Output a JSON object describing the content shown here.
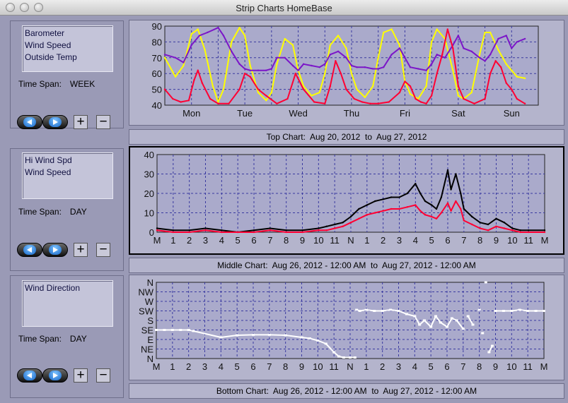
{
  "window": {
    "title": "Strip Charts    HomeBase"
  },
  "panels": [
    {
      "legend": [
        "Barometer",
        "Wind Speed",
        "Outside Temp"
      ],
      "time_span_label": "Time Span:",
      "time_span_value": "WEEK",
      "caption": "Top Chart:  Aug 20, 2012  to  Aug 27, 2012"
    },
    {
      "legend": [
        "Hi Wind Spd",
        "Wind Speed"
      ],
      "time_span_label": "Time Span:",
      "time_span_value": "DAY",
      "caption": "Middle Chart:  Aug 26, 2012 - 12:00 AM  to  Aug 27, 2012 - 12:00 AM"
    },
    {
      "legend": [
        "Wind Direction"
      ],
      "time_span_label": "Time Span:",
      "time_span_value": "DAY",
      "caption": "Bottom Chart:  Aug 26, 2012 - 12:00 AM  to  Aug 27, 2012 - 12:00 AM"
    }
  ],
  "buttons": {
    "prev_icon": "left-arrow-icon",
    "next_icon": "right-arrow-icon",
    "zoom_in": "+",
    "zoom_out": "−"
  },
  "colors": {
    "plot_bg": "#aaaacb",
    "grid": "#3a3aa0",
    "barometer": "#7b16c8",
    "wind_speed_red": "#ff0033",
    "outside_temp": "#ffff00",
    "hi_wind": "#000000",
    "wind_dir": "#ffffff"
  },
  "chart_data": [
    {
      "type": "line",
      "name": "top",
      "categories": [
        "Mon",
        "Tue",
        "Wed",
        "Thu",
        "Fri",
        "Sat",
        "Sun"
      ],
      "y_ticks": [
        40,
        50,
        60,
        70,
        80,
        90
      ],
      "ylim": [
        40,
        90
      ],
      "grid": true,
      "series": [
        {
          "name": "Outside Temp",
          "color": "#ffff00",
          "x": [
            0,
            0.2,
            0.35,
            0.5,
            0.62,
            0.75,
            0.9,
            1.0,
            1.1,
            1.25,
            1.4,
            1.5,
            1.6,
            1.75,
            1.9,
            2.0,
            2.1,
            2.25,
            2.4,
            2.5,
            2.6,
            2.75,
            2.9,
            3.0,
            3.1,
            3.25,
            3.4,
            3.5,
            3.6,
            3.75,
            3.9,
            4.0,
            4.1,
            4.25,
            4.4,
            4.5,
            4.6,
            4.75,
            4.9,
            5.0,
            5.1,
            5.25,
            5.4,
            5.5,
            5.6,
            5.75,
            5.9,
            6.0,
            6.1,
            6.25,
            6.4,
            6.5,
            6.6,
            6.75
          ],
          "values": [
            70,
            58,
            65,
            85,
            88,
            75,
            52,
            42,
            50,
            80,
            89,
            84,
            65,
            48,
            43,
            48,
            66,
            82,
            78,
            62,
            52,
            46,
            48,
            60,
            78,
            84,
            76,
            60,
            50,
            45,
            52,
            70,
            86,
            88,
            78,
            55,
            47,
            44,
            52,
            80,
            88,
            82,
            62,
            46,
            44,
            48,
            72,
            86,
            86,
            75,
            66,
            62,
            58,
            57
          ]
        },
        {
          "name": "Barometer",
          "color": "#7b16c8",
          "x": [
            0,
            0.2,
            0.35,
            0.5,
            0.65,
            0.8,
            1.0,
            1.1,
            1.25,
            1.4,
            1.5,
            1.6,
            1.75,
            1.9,
            2.0,
            2.1,
            2.25,
            2.4,
            2.5,
            2.6,
            2.75,
            2.9,
            3.0,
            3.1,
            3.25,
            3.4,
            3.5,
            3.6,
            3.75,
            3.9,
            4.0,
            4.1,
            4.25,
            4.4,
            4.5,
            4.6,
            4.75,
            4.9,
            5.0,
            5.1,
            5.25,
            5.4,
            5.5,
            5.6,
            5.75,
            5.9,
            6.0,
            6.1,
            6.25,
            6.4,
            6.5,
            6.6,
            6.75
          ],
          "values": [
            72,
            70,
            67,
            78,
            84,
            86,
            89,
            84,
            74,
            66,
            63,
            62,
            62,
            62,
            63,
            70,
            70,
            65,
            62,
            66,
            65,
            64,
            66,
            72,
            74,
            70,
            65,
            64,
            64,
            63,
            63,
            64,
            72,
            76,
            70,
            64,
            63,
            62,
            66,
            72,
            70,
            78,
            84,
            76,
            74,
            70,
            68,
            72,
            82,
            84,
            76,
            80,
            82
          ]
        },
        {
          "name": "Wind Speed",
          "color": "#ff0033",
          "x": [
            0,
            0.15,
            0.3,
            0.45,
            0.55,
            0.62,
            0.7,
            0.85,
            1.0,
            1.2,
            1.4,
            1.5,
            1.6,
            1.75,
            1.9,
            2.1,
            2.3,
            2.45,
            2.6,
            2.8,
            3.0,
            3.1,
            3.2,
            3.3,
            3.4,
            3.55,
            3.7,
            3.85,
            4.0,
            4.2,
            4.4,
            4.5,
            4.6,
            4.7,
            4.8,
            4.9,
            5.0,
            5.1,
            5.2,
            5.3,
            5.4,
            5.5,
            5.6,
            5.8,
            6.0,
            6.1,
            6.2,
            6.3,
            6.4,
            6.5,
            6.6,
            6.75
          ],
          "values": [
            50,
            44,
            42,
            43,
            56,
            62,
            54,
            44,
            41,
            41,
            50,
            60,
            58,
            50,
            46,
            41,
            44,
            60,
            50,
            42,
            41,
            52,
            68,
            60,
            50,
            44,
            42,
            41,
            41,
            42,
            48,
            55,
            52,
            44,
            42,
            41,
            46,
            60,
            72,
            88,
            76,
            52,
            44,
            41,
            44,
            60,
            68,
            64,
            54,
            50,
            44,
            41
          ]
        }
      ]
    },
    {
      "type": "line",
      "name": "middle",
      "categories": [
        "M",
        "1",
        "2",
        "3",
        "4",
        "5",
        "6",
        "7",
        "8",
        "9",
        "10",
        "11",
        "N",
        "1",
        "2",
        "3",
        "4",
        "5",
        "6",
        "7",
        "8",
        "9",
        "10",
        "11",
        "M"
      ],
      "y_ticks": [
        0,
        10,
        20,
        30,
        40
      ],
      "ylim": [
        0,
        40
      ],
      "grid": true,
      "series": [
        {
          "name": "Hi Wind Spd",
          "color": "#000000",
          "x": [
            0,
            1,
            2,
            3,
            4,
            5,
            6,
            7,
            8,
            9,
            10,
            10.5,
            11,
            11.5,
            12,
            12.5,
            13,
            13.5,
            14,
            14.5,
            15,
            15.5,
            16,
            16.3,
            16.6,
            17,
            17.3,
            17.6,
            18,
            18.2,
            18.5,
            18.8,
            19,
            19.5,
            20,
            20.5,
            21,
            21.5,
            22,
            22.5,
            23,
            24
          ],
          "values": [
            2,
            1,
            1,
            2,
            1,
            0,
            1,
            2,
            1,
            1,
            2,
            3,
            4,
            5,
            8,
            12,
            14,
            16,
            17,
            18,
            18,
            20,
            25,
            20,
            16,
            14,
            12,
            18,
            32,
            22,
            30,
            20,
            12,
            8,
            5,
            4,
            7,
            5,
            2,
            1,
            1,
            1
          ]
        },
        {
          "name": "Wind Speed",
          "color": "#ff0033",
          "x": [
            0,
            1,
            2,
            3,
            4,
            5,
            6,
            7,
            8,
            9,
            10,
            10.5,
            11,
            11.5,
            12,
            12.5,
            13,
            13.5,
            14,
            14.5,
            15,
            15.5,
            16,
            16.3,
            16.6,
            17,
            17.3,
            17.6,
            18,
            18.2,
            18.5,
            18.8,
            19,
            19.5,
            20,
            20.5,
            21,
            21.5,
            22,
            22.5,
            23,
            24
          ],
          "values": [
            1,
            0,
            0,
            1,
            0,
            0,
            0,
            1,
            0,
            0,
            1,
            1,
            2,
            3,
            5,
            7,
            9,
            10,
            11,
            12,
            12,
            13,
            14,
            11,
            9,
            8,
            7,
            10,
            15,
            11,
            16,
            12,
            6,
            4,
            2,
            1,
            3,
            2,
            1,
            0,
            0,
            0
          ]
        }
      ]
    },
    {
      "type": "scatter",
      "name": "bottom",
      "categories": [
        "M",
        "1",
        "2",
        "3",
        "4",
        "5",
        "6",
        "7",
        "8",
        "9",
        "10",
        "11",
        "N",
        "1",
        "2",
        "3",
        "4",
        "5",
        "6",
        "7",
        "8",
        "9",
        "10",
        "11",
        "M"
      ],
      "y_ticks": [
        "N",
        "NE",
        "E",
        "SE",
        "S",
        "SW",
        "W",
        "NW",
        "N"
      ],
      "ylim": [
        0,
        360
      ],
      "grid": true,
      "series": [
        {
          "name": "Wind Direction",
          "color": "#ffffff",
          "x": [
            0,
            0.5,
            1,
            1.5,
            2,
            2.3,
            4,
            5,
            6,
            7,
            8,
            9,
            9.5,
            10,
            10.5,
            11,
            11.3,
            11.6,
            12,
            12.3,
            12.4,
            12.6,
            13,
            13.5,
            14,
            14.5,
            15,
            15.5,
            16,
            16.3,
            16.6,
            17,
            17.3,
            17.6,
            18,
            18.3,
            18.6,
            19,
            19.3,
            19.6,
            20,
            20.2,
            20.4,
            20.6,
            20.8,
            21,
            21.5,
            22,
            22.5,
            23,
            23.5,
            24
          ],
          "values": [
            135,
            135,
            135,
            135,
            135,
            130,
            100,
            110,
            112,
            112,
            110,
            100,
            95,
            85,
            70,
            30,
            10,
            5,
            5,
            5,
            230,
            225,
            230,
            225,
            225,
            230,
            225,
            210,
            200,
            160,
            180,
            150,
            200,
            170,
            150,
            190,
            180,
            140,
            200,
            160,
            230,
            120,
            360,
            30,
            60,
            225,
            225,
            225,
            230,
            225,
            225,
            225
          ]
        }
      ]
    }
  ]
}
